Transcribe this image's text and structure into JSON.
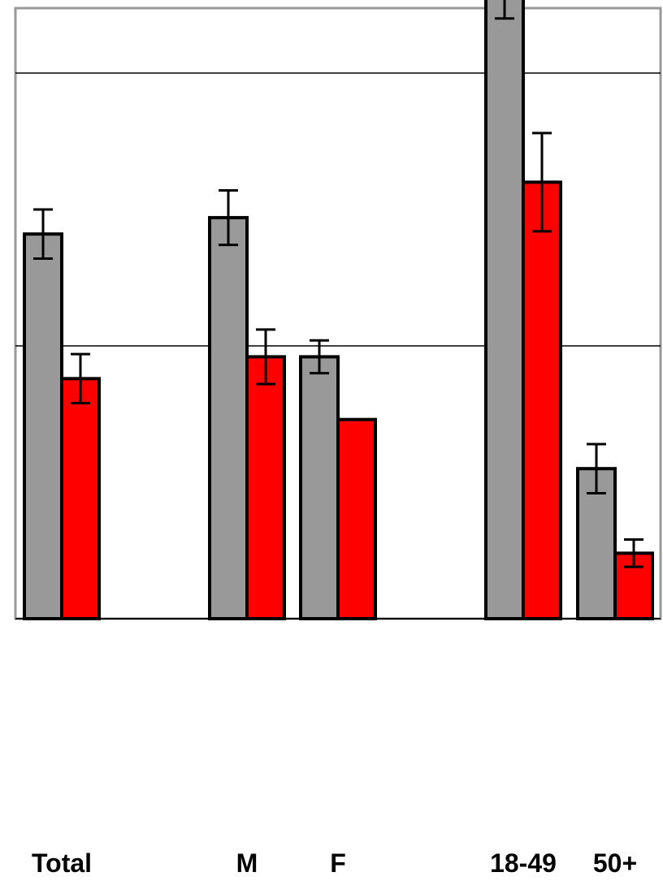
{
  "chart_data": {
    "type": "bar",
    "categories": [
      "Total",
      "M",
      "F",
      "18-49",
      "50+"
    ],
    "series": [
      {
        "values": [
          1.41,
          1.47,
          0.96,
          2.37,
          0.55
        ],
        "error": [
          0.09,
          0.1,
          0.06,
          0.17,
          0.09
        ],
        "color": "#999999"
      },
      {
        "values": [
          0.88,
          0.96,
          0.73,
          1.6,
          0.24
        ],
        "error": [
          0.09,
          0.1,
          0.0,
          0.18,
          0.05
        ],
        "color": "#ff0000"
      }
    ],
    "ylim": [
      0,
      2.9
    ],
    "gridlines": [
      0,
      1,
      2
    ],
    "grid": true,
    "legend": "none",
    "title": "",
    "xlabel": "",
    "ylabel": ""
  }
}
